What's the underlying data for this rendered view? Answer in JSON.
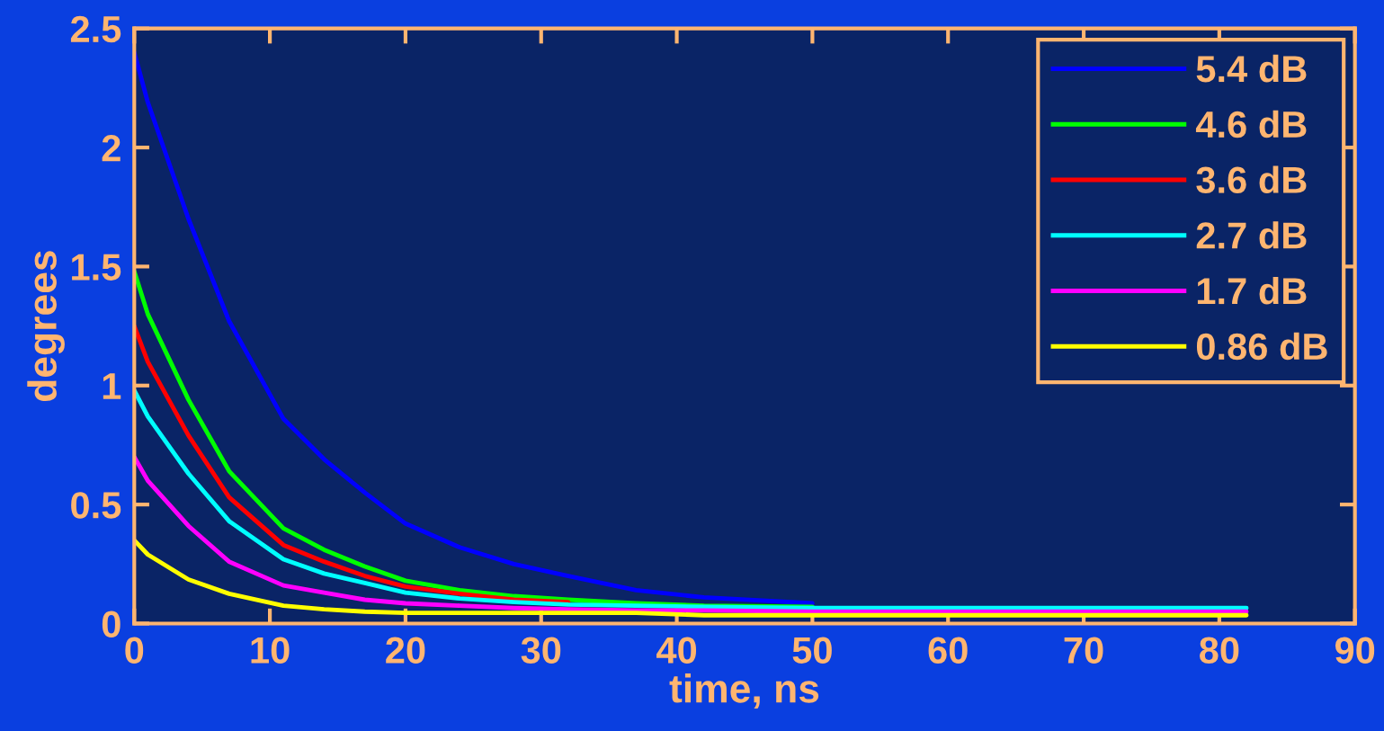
{
  "chart_data": {
    "type": "line",
    "xlabel": "time, ns",
    "ylabel": "degrees",
    "xlim": [
      0,
      90
    ],
    "ylim": [
      0,
      2.5
    ],
    "xticks": [
      0,
      10,
      20,
      30,
      40,
      50,
      60,
      70,
      80,
      90
    ],
    "yticks": [
      0,
      0.5,
      1,
      1.5,
      2,
      2.5
    ],
    "grid": false,
    "legend": "top right",
    "marker": "none",
    "line_style": "solid",
    "x": [
      0,
      1,
      4,
      7,
      11,
      14,
      17,
      20,
      24,
      28,
      32,
      37,
      42,
      50,
      60,
      70,
      82
    ],
    "series": [
      {
        "name": "5.4 dB",
        "color": "#0000ff",
        "values": [
          2.4,
          2.19,
          1.7,
          1.27,
          0.86,
          0.69,
          0.55,
          0.42,
          0.32,
          0.25,
          0.2,
          0.14,
          0.11,
          0.085,
          null,
          null,
          null
        ]
      },
      {
        "name": "4.6 dB",
        "color": "#00ff00",
        "values": [
          1.48,
          1.3,
          0.94,
          0.64,
          0.4,
          0.31,
          0.24,
          0.18,
          0.14,
          0.115,
          0.1,
          0.085,
          0.075,
          0.07,
          null,
          null,
          null
        ]
      },
      {
        "name": "3.6 dB",
        "color": "#ff0000",
        "values": [
          1.25,
          1.1,
          0.79,
          0.53,
          0.33,
          0.26,
          0.2,
          0.155,
          0.125,
          0.1,
          0.09,
          null,
          null,
          null,
          null,
          null,
          null
        ]
      },
      {
        "name": "2.7 dB",
        "color": "#00ffff",
        "values": [
          0.98,
          0.87,
          0.63,
          0.43,
          0.27,
          0.21,
          0.17,
          0.13,
          0.105,
          0.09,
          0.08,
          0.075,
          0.07,
          0.065,
          0.065,
          0.065,
          0.065
        ]
      },
      {
        "name": "1.7 dB",
        "color": "#ff00ff",
        "values": [
          0.7,
          0.6,
          0.41,
          0.26,
          0.16,
          0.13,
          0.1,
          0.085,
          0.075,
          0.065,
          0.06,
          0.055,
          0.055,
          0.05,
          0.05,
          0.05,
          0.05
        ]
      },
      {
        "name": "0.86 dB",
        "color": "#ffff00",
        "values": [
          0.35,
          0.29,
          0.185,
          0.125,
          0.075,
          0.06,
          0.05,
          0.045,
          0.045,
          0.045,
          0.045,
          0.045,
          0.035,
          0.035,
          0.035,
          0.035,
          0.035
        ]
      }
    ]
  }
}
